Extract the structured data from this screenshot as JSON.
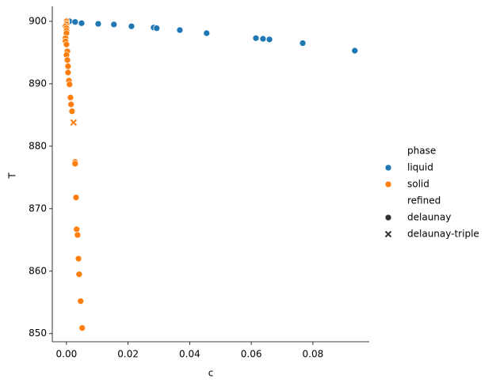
{
  "chart_data": {
    "type": "scatter",
    "x_label": "c",
    "y_label": "T",
    "xlim": [
      -0.0046,
      0.0983
    ],
    "ylim": [
      848.7,
      902.4
    ],
    "xticks": [
      {
        "value": 0,
        "label": "0.00"
      },
      {
        "value": 0.02,
        "label": "0.02"
      },
      {
        "value": 0.04,
        "label": "0.04"
      },
      {
        "value": 0.06,
        "label": "0.06"
      },
      {
        "value": 0.08,
        "label": "0.08"
      }
    ],
    "yticks": [
      850,
      860,
      870,
      880,
      890,
      900
    ],
    "hue": {
      "title": "phase",
      "levels": [
        {
          "name": "liquid",
          "color": "#1f77b4"
        },
        {
          "name": "solid",
          "color": "#ff7f0e"
        }
      ]
    },
    "style": {
      "title": "refined",
      "levels": [
        {
          "name": "delaunay",
          "marker": "circle"
        },
        {
          "name": "delaunay-triple",
          "marker": "x"
        }
      ]
    },
    "series": [
      {
        "hue": 0,
        "style": 0,
        "x": [
          0.001,
          0.0028,
          0.0049,
          0.0103,
          0.0154,
          0.0211,
          0.0283,
          0.0293,
          0.0368,
          0.0455,
          0.0615,
          0.0638,
          0.0659,
          0.0767,
          0.0936
        ],
        "values": [
          900.0,
          899.9,
          899.7,
          899.6,
          899.5,
          899.2,
          899.0,
          898.9,
          898.6,
          898.1,
          897.3,
          897.2,
          897.1,
          896.5,
          895.3
        ]
      },
      {
        "hue": 1,
        "style": 0,
        "x": [
          0.0,
          0.0,
          0.0,
          -0.0003,
          0.0,
          0.0,
          0.0,
          -0.0003,
          -0.0003,
          0.0,
          0.0003,
          0.0,
          0.0003,
          0.0005,
          0.0005,
          0.0008,
          0.001,
          0.0013,
          0.0015,
          0.0018,
          0.0028,
          0.0028,
          0.0031,
          0.0033,
          0.0036,
          0.0039,
          0.0041,
          0.0046,
          0.0051
        ],
        "values": [
          900.0,
          899.7,
          899.5,
          899.2,
          898.9,
          898.5,
          898.1,
          897.3,
          896.8,
          896.3,
          895.2,
          894.6,
          893.8,
          892.8,
          891.8,
          890.5,
          889.9,
          887.8,
          886.7,
          885.6,
          877.5,
          877.2,
          871.8,
          866.7,
          865.8,
          862.0,
          859.5,
          855.2,
          850.9
        ]
      },
      {
        "hue": 1,
        "style": 1,
        "x": [
          0.0023
        ],
        "values": [
          883.8
        ]
      }
    ]
  }
}
